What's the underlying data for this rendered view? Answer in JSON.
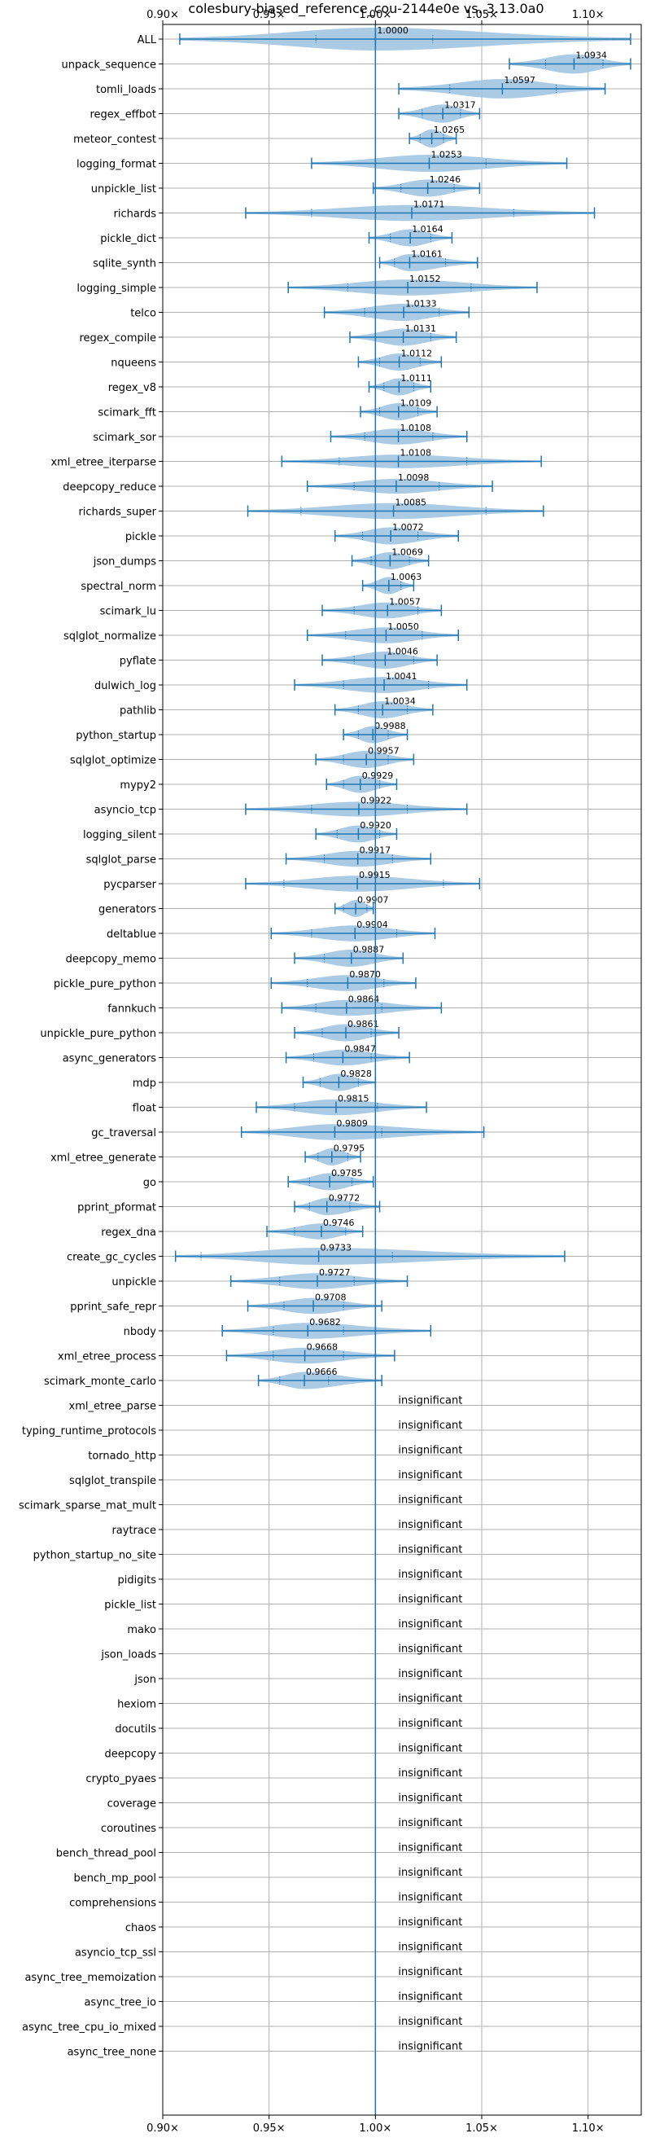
{
  "chart_data": {
    "type": "violin",
    "title": "colesbury-biased_reference_cou-2144e0e vs. 3.13.0a0",
    "xlim": [
      0.9,
      1.125
    ],
    "x_ticks": [
      0.9,
      0.95,
      1.0,
      1.05,
      1.1
    ],
    "x_tick_labels": [
      "0.90×",
      "0.95×",
      "1.00×",
      "1.05×",
      "1.10×"
    ],
    "reference_line": 1.0,
    "grid": true,
    "colors": {
      "violin": "#a6c8e4",
      "line": "#1f77b4",
      "grid": "#b0b0b0"
    },
    "insignificant_label": "insignificant",
    "benchmarks": [
      {
        "name": "ALL",
        "label": "1.0000",
        "median": 1.0,
        "min": 0.908,
        "max": 1.12,
        "q1": 0.972,
        "q3": 1.027,
        "width": 1.0
      },
      {
        "name": "unpack_sequence",
        "label": "1.0934",
        "median": 1.0934,
        "min": 1.063,
        "max": 1.12,
        "q1": 1.08,
        "q3": 1.107,
        "width": 0.85
      },
      {
        "name": "tomli_loads",
        "label": "1.0597",
        "median": 1.0597,
        "min": 1.011,
        "max": 1.108,
        "q1": 1.035,
        "q3": 1.085,
        "width": 0.85
      },
      {
        "name": "regex_effbot",
        "label": "1.0317",
        "median": 1.0317,
        "min": 1.011,
        "max": 1.049,
        "q1": 1.022,
        "q3": 1.04,
        "width": 0.8
      },
      {
        "name": "meteor_contest",
        "label": "1.0265",
        "median": 1.0265,
        "min": 1.016,
        "max": 1.038,
        "q1": 1.021,
        "q3": 1.032,
        "width": 0.8
      },
      {
        "name": "logging_format",
        "label": "1.0253",
        "median": 1.0253,
        "min": 0.97,
        "max": 1.09,
        "q1": 1.0,
        "q3": 1.052,
        "width": 0.75
      },
      {
        "name": "unpickle_list",
        "label": "1.0246",
        "median": 1.0246,
        "min": 0.999,
        "max": 1.049,
        "q1": 1.012,
        "q3": 1.037,
        "width": 0.75
      },
      {
        "name": "richards",
        "label": "1.0171",
        "median": 1.0171,
        "min": 0.939,
        "max": 1.103,
        "q1": 0.97,
        "q3": 1.065,
        "width": 0.7
      },
      {
        "name": "pickle_dict",
        "label": "1.0164",
        "median": 1.0164,
        "min": 0.997,
        "max": 1.036,
        "q1": 1.007,
        "q3": 1.026,
        "width": 0.75
      },
      {
        "name": "sqlite_synth",
        "label": "1.0161",
        "median": 1.0161,
        "min": 1.002,
        "max": 1.048,
        "q1": 1.009,
        "q3": 1.033,
        "width": 0.75
      },
      {
        "name": "logging_simple",
        "label": "1.0152",
        "median": 1.0152,
        "min": 0.959,
        "max": 1.076,
        "q1": 0.987,
        "q3": 1.045,
        "width": 0.7
      },
      {
        "name": "telco",
        "label": "1.0133",
        "median": 1.0133,
        "min": 0.976,
        "max": 1.044,
        "q1": 0.995,
        "q3": 1.03,
        "width": 0.75
      },
      {
        "name": "regex_compile",
        "label": "1.0131",
        "median": 1.0131,
        "min": 0.988,
        "max": 1.038,
        "q1": 1.0,
        "q3": 1.026,
        "width": 0.75
      },
      {
        "name": "nqueens",
        "label": "1.0112",
        "median": 1.0112,
        "min": 0.992,
        "max": 1.031,
        "q1": 1.002,
        "q3": 1.021,
        "width": 0.75
      },
      {
        "name": "regex_v8",
        "label": "1.0111",
        "median": 1.0111,
        "min": 0.997,
        "max": 1.026,
        "q1": 1.004,
        "q3": 1.018,
        "width": 0.75
      },
      {
        "name": "scimark_fft",
        "label": "1.0109",
        "median": 1.0109,
        "min": 0.993,
        "max": 1.029,
        "q1": 1.002,
        "q3": 1.02,
        "width": 0.75
      },
      {
        "name": "scimark_sor",
        "label": "1.0108",
        "median": 1.0108,
        "min": 0.979,
        "max": 1.043,
        "q1": 0.995,
        "q3": 1.027,
        "width": 0.7
      },
      {
        "name": "xml_etree_iterparse",
        "label": "1.0108",
        "median": 1.0108,
        "min": 0.956,
        "max": 1.078,
        "q1": 0.983,
        "q3": 1.043,
        "width": 0.6
      },
      {
        "name": "deepcopy_reduce",
        "label": "1.0098",
        "median": 1.0098,
        "min": 0.968,
        "max": 1.055,
        "q1": 0.99,
        "q3": 1.03,
        "width": 0.65
      },
      {
        "name": "richards_super",
        "label": "1.0085",
        "median": 1.0085,
        "min": 0.94,
        "max": 1.079,
        "q1": 0.965,
        "q3": 1.052,
        "width": 0.7
      },
      {
        "name": "pickle",
        "label": "1.0072",
        "median": 1.0072,
        "min": 0.981,
        "max": 1.039,
        "q1": 0.994,
        "q3": 1.02,
        "width": 0.75
      },
      {
        "name": "json_dumps",
        "label": "1.0069",
        "median": 1.0069,
        "min": 0.989,
        "max": 1.025,
        "q1": 0.998,
        "q3": 1.016,
        "width": 0.75
      },
      {
        "name": "spectral_norm",
        "label": "1.0063",
        "median": 1.0063,
        "min": 0.994,
        "max": 1.018,
        "q1": 1.0,
        "q3": 1.012,
        "width": 0.75
      },
      {
        "name": "scimark_lu",
        "label": "1.0057",
        "median": 1.0057,
        "min": 0.975,
        "max": 1.031,
        "q1": 0.99,
        "q3": 1.02,
        "width": 0.7
      },
      {
        "name": "sqlglot_normalize",
        "label": "1.0050",
        "median": 1.005,
        "min": 0.968,
        "max": 1.039,
        "q1": 0.986,
        "q3": 1.022,
        "width": 0.7
      },
      {
        "name": "pyflate",
        "label": "1.0046",
        "median": 1.0046,
        "min": 0.975,
        "max": 1.029,
        "q1": 0.99,
        "q3": 1.018,
        "width": 0.75
      },
      {
        "name": "dulwich_log",
        "label": "1.0041",
        "median": 1.0041,
        "min": 0.962,
        "max": 1.043,
        "q1": 0.985,
        "q3": 1.025,
        "width": 0.7
      },
      {
        "name": "pathlib",
        "label": "1.0034",
        "median": 1.0034,
        "min": 0.981,
        "max": 1.027,
        "q1": 0.992,
        "q3": 1.015,
        "width": 0.75
      },
      {
        "name": "python_startup",
        "label": "0.9988",
        "median": 0.9988,
        "min": 0.985,
        "max": 1.015,
        "q1": 0.992,
        "q3": 1.006,
        "width": 0.75
      },
      {
        "name": "sqlglot_optimize",
        "label": "0.9957",
        "median": 0.9957,
        "min": 0.972,
        "max": 1.018,
        "q1": 0.985,
        "q3": 1.006,
        "width": 0.75
      },
      {
        "name": "mypy2",
        "label": "0.9929",
        "median": 0.9929,
        "min": 0.977,
        "max": 1.01,
        "q1": 0.985,
        "q3": 1.002,
        "width": 0.75
      },
      {
        "name": "asyncio_tcp",
        "label": "0.9922",
        "median": 0.9922,
        "min": 0.939,
        "max": 1.043,
        "q1": 0.97,
        "q3": 1.015,
        "width": 0.65
      },
      {
        "name": "logging_silent",
        "label": "0.9920",
        "median": 0.992,
        "min": 0.972,
        "max": 1.01,
        "q1": 0.982,
        "q3": 1.002,
        "width": 0.75
      },
      {
        "name": "sqlglot_parse",
        "label": "0.9917",
        "median": 0.9917,
        "min": 0.958,
        "max": 1.026,
        "q1": 0.976,
        "q3": 1.008,
        "width": 0.7
      },
      {
        "name": "pycparser",
        "label": "0.9915",
        "median": 0.9915,
        "min": 0.939,
        "max": 1.049,
        "q1": 0.957,
        "q3": 1.032,
        "width": 0.7
      },
      {
        "name": "generators",
        "label": "0.9907",
        "median": 0.9907,
        "min": 0.981,
        "max": 0.999,
        "q1": 0.985,
        "q3": 0.996,
        "width": 0.75
      },
      {
        "name": "deltablue",
        "label": "0.9904",
        "median": 0.9904,
        "min": 0.951,
        "max": 1.028,
        "q1": 0.97,
        "q3": 1.01,
        "width": 0.7
      },
      {
        "name": "deepcopy_memo",
        "label": "0.9887",
        "median": 0.9887,
        "min": 0.962,
        "max": 1.013,
        "q1": 0.976,
        "q3": 1.0,
        "width": 0.75
      },
      {
        "name": "pickle_pure_python",
        "label": "0.9870",
        "median": 0.987,
        "min": 0.951,
        "max": 1.019,
        "q1": 0.968,
        "q3": 1.004,
        "width": 0.7
      },
      {
        "name": "fannkuch",
        "label": "0.9864",
        "median": 0.9864,
        "min": 0.956,
        "max": 1.031,
        "q1": 0.972,
        "q3": 1.003,
        "width": 0.7
      },
      {
        "name": "unpickle_pure_python",
        "label": "0.9861",
        "median": 0.9861,
        "min": 0.962,
        "max": 1.011,
        "q1": 0.975,
        "q3": 0.998,
        "width": 0.75
      },
      {
        "name": "async_generators",
        "label": "0.9847",
        "median": 0.9847,
        "min": 0.958,
        "max": 1.016,
        "q1": 0.971,
        "q3": 0.998,
        "width": 0.7
      },
      {
        "name": "mdp",
        "label": "0.9828",
        "median": 0.9828,
        "min": 0.966,
        "max": 1.0,
        "q1": 0.974,
        "q3": 0.992,
        "width": 0.75
      },
      {
        "name": "float",
        "label": "0.9815",
        "median": 0.9815,
        "min": 0.944,
        "max": 1.024,
        "q1": 0.962,
        "q3": 1.001,
        "width": 0.7
      },
      {
        "name": "gc_traversal",
        "label": "0.9809",
        "median": 0.9809,
        "min": 0.937,
        "max": 1.051,
        "q1": 0.95,
        "q3": 1.003,
        "width": 0.7
      },
      {
        "name": "xml_etree_generate",
        "label": "0.9795",
        "median": 0.9795,
        "min": 0.967,
        "max": 0.993,
        "q1": 0.973,
        "q3": 0.987,
        "width": 0.75
      },
      {
        "name": "go",
        "label": "0.9785",
        "median": 0.9785,
        "min": 0.959,
        "max": 0.999,
        "q1": 0.969,
        "q3": 0.989,
        "width": 0.75
      },
      {
        "name": "pprint_pformat",
        "label": "0.9772",
        "median": 0.9772,
        "min": 0.962,
        "max": 1.002,
        "q1": 0.969,
        "q3": 0.988,
        "width": 0.75
      },
      {
        "name": "regex_dna",
        "label": "0.9746",
        "median": 0.9746,
        "min": 0.949,
        "max": 0.994,
        "q1": 0.962,
        "q3": 0.986,
        "width": 0.7
      },
      {
        "name": "create_gc_cycles",
        "label": "0.9733",
        "median": 0.9733,
        "min": 0.906,
        "max": 1.089,
        "q1": 0.918,
        "q3": 1.008,
        "width": 0.75
      },
      {
        "name": "unpickle",
        "label": "0.9727",
        "median": 0.9727,
        "min": 0.932,
        "max": 1.015,
        "q1": 0.955,
        "q3": 0.99,
        "width": 0.7
      },
      {
        "name": "pprint_safe_repr",
        "label": "0.9708",
        "median": 0.9708,
        "min": 0.94,
        "max": 1.003,
        "q1": 0.957,
        "q3": 0.985,
        "width": 0.7
      },
      {
        "name": "nbody",
        "label": "0.9682",
        "median": 0.9682,
        "min": 0.928,
        "max": 1.026,
        "q1": 0.952,
        "q3": 0.985,
        "width": 0.7
      },
      {
        "name": "xml_etree_process",
        "label": "0.9668",
        "median": 0.9668,
        "min": 0.93,
        "max": 1.009,
        "q1": 0.952,
        "q3": 0.985,
        "width": 0.7
      },
      {
        "name": "scimark_monte_carlo",
        "label": "0.9666",
        "median": 0.9666,
        "min": 0.945,
        "max": 1.003,
        "q1": 0.955,
        "q3": 0.978,
        "width": 0.75
      },
      {
        "name": "xml_etree_parse",
        "insignificant": true
      },
      {
        "name": "typing_runtime_protocols",
        "insignificant": true
      },
      {
        "name": "tornado_http",
        "insignificant": true
      },
      {
        "name": "sqlglot_transpile",
        "insignificant": true
      },
      {
        "name": "scimark_sparse_mat_mult",
        "insignificant": true
      },
      {
        "name": "raytrace",
        "insignificant": true
      },
      {
        "name": "python_startup_no_site",
        "insignificant": true
      },
      {
        "name": "pidigits",
        "insignificant": true
      },
      {
        "name": "pickle_list",
        "insignificant": true
      },
      {
        "name": "mako",
        "insignificant": true
      },
      {
        "name": "json_loads",
        "insignificant": true
      },
      {
        "name": "json",
        "insignificant": true
      },
      {
        "name": "hexiom",
        "insignificant": true
      },
      {
        "name": "docutils",
        "insignificant": true
      },
      {
        "name": "deepcopy",
        "insignificant": true
      },
      {
        "name": "crypto_pyaes",
        "insignificant": true
      },
      {
        "name": "coverage",
        "insignificant": true
      },
      {
        "name": "coroutines",
        "insignificant": true
      },
      {
        "name": "bench_thread_pool",
        "insignificant": true
      },
      {
        "name": "bench_mp_pool",
        "insignificant": true
      },
      {
        "name": "comprehensions",
        "insignificant": true
      },
      {
        "name": "chaos",
        "insignificant": true
      },
      {
        "name": "asyncio_tcp_ssl",
        "insignificant": true
      },
      {
        "name": "async_tree_memoization",
        "insignificant": true
      },
      {
        "name": "async_tree_io",
        "insignificant": true
      },
      {
        "name": "async_tree_cpu_io_mixed",
        "insignificant": true
      },
      {
        "name": "async_tree_none",
        "insignificant": true
      }
    ]
  }
}
